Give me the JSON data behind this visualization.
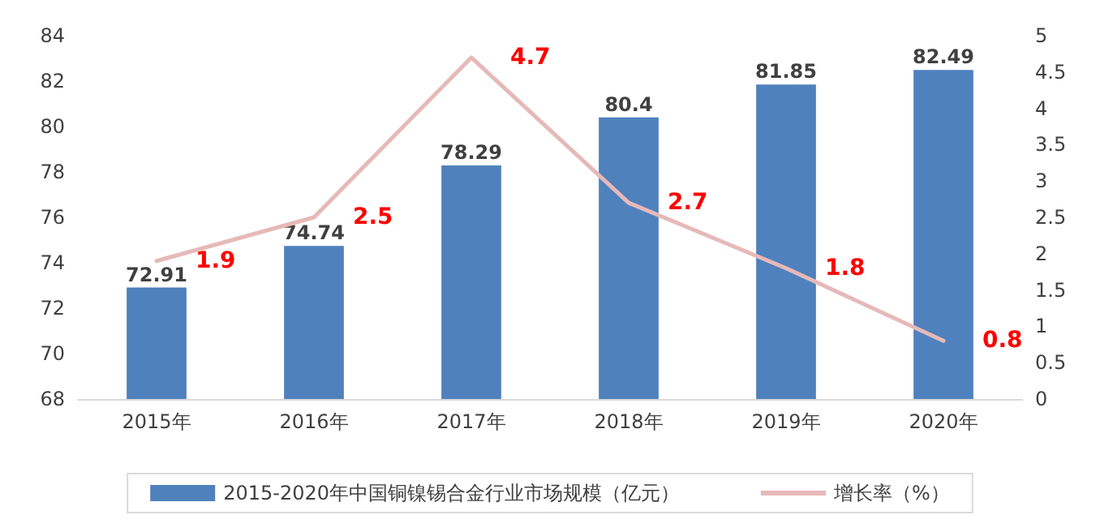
{
  "chart_data": {
    "type": "bar",
    "categories": [
      "2015年",
      "2016年",
      "2017年",
      "2018年",
      "2019年",
      "2020年"
    ],
    "series": [
      {
        "name": "2015-2020年中国铜镍锡合金行业市场规模（亿元）",
        "type": "bar",
        "color": "#4f81bd",
        "values": [
          72.91,
          74.74,
          78.29,
          80.4,
          81.85,
          82.49
        ]
      },
      {
        "name": "增长率（%）",
        "type": "line",
        "axis": "y2",
        "color": "#e6b9b8",
        "values": [
          1.9,
          2.5,
          4.7,
          2.7,
          1.8,
          0.8
        ]
      }
    ],
    "ylim": [
      68,
      84
    ],
    "yticks": [
      68,
      70,
      72,
      74,
      76,
      78,
      80,
      82,
      84
    ],
    "y2lim": [
      0,
      5
    ],
    "y2ticks": [
      0,
      0.5,
      1,
      1.5,
      2,
      2.5,
      3,
      3.5,
      4,
      4.5,
      5
    ],
    "data_labels": true,
    "grid": false,
    "legend": "bottom",
    "marker": "none",
    "line_style": "solid"
  }
}
